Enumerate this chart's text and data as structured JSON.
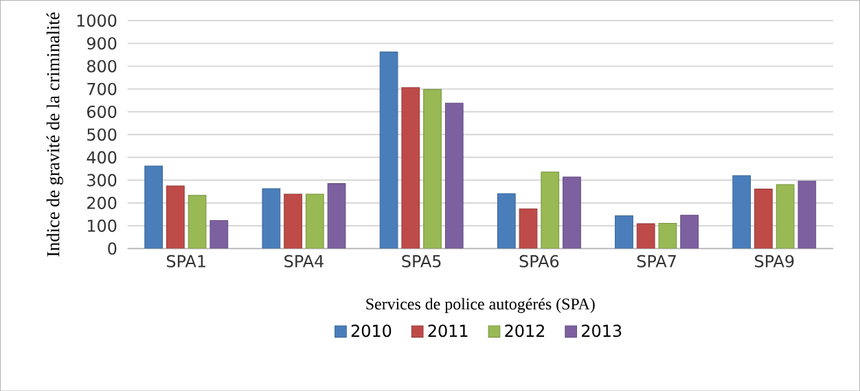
{
  "chart_data": {
    "type": "bar",
    "xlabel": "Services de police autogérés (SPA)",
    "ylabel": "Indice de gravité de la criminalité",
    "categories": [
      "SPA1",
      "SPA4",
      "SPA5",
      "SPA6",
      "SPA7",
      "SPA9"
    ],
    "series": [
      {
        "name": "2010",
        "color": "#4a7ebb",
        "values": [
          362,
          263,
          862,
          241,
          144,
          320
        ]
      },
      {
        "name": "2011",
        "color": "#be4b48",
        "values": [
          275,
          239,
          706,
          174,
          109,
          261
        ]
      },
      {
        "name": "2012",
        "color": "#98b954",
        "values": [
          233,
          239,
          698,
          336,
          111,
          281
        ]
      },
      {
        "name": "2013",
        "color": "#7d60a0",
        "values": [
          123,
          285,
          638,
          314,
          146,
          296
        ]
      }
    ],
    "ylim": [
      0,
      1000
    ],
    "yticks": [
      0,
      100,
      200,
      300,
      400,
      500,
      600,
      700,
      800,
      900,
      1000
    ],
    "grid": "y",
    "legend": "bottom"
  }
}
